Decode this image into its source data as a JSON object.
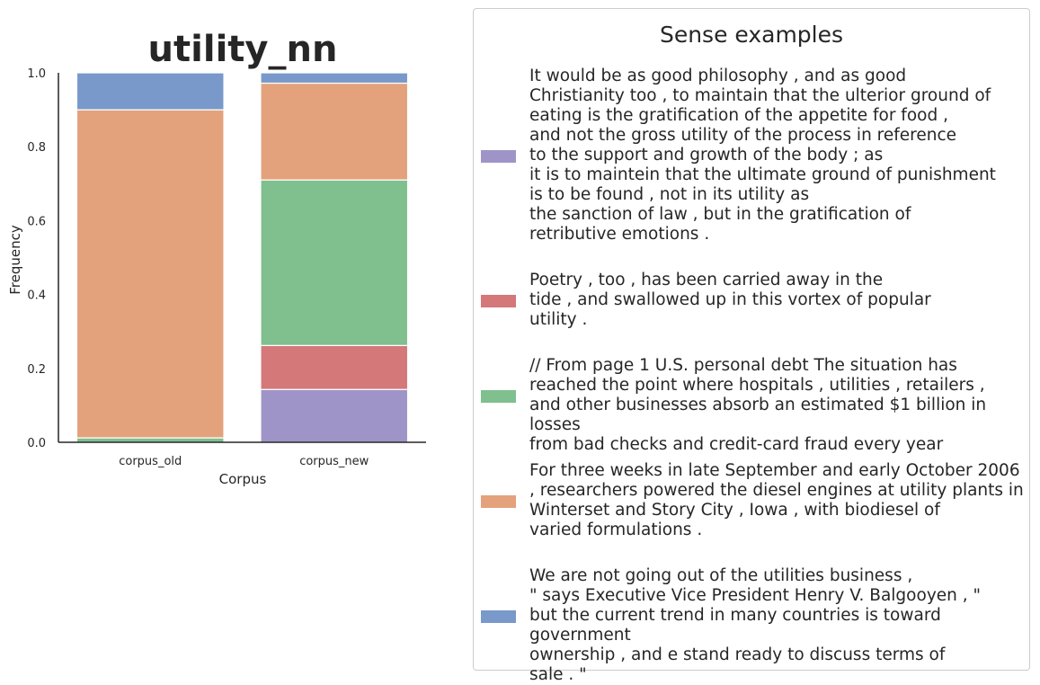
{
  "chart_data": {
    "type": "bar",
    "stacked": true,
    "title": "utility_nn",
    "xlabel": "Corpus",
    "ylabel": "Frequency",
    "ylim": [
      0,
      1.0
    ],
    "yticks": [
      "0.0",
      "0.2",
      "0.4",
      "0.6",
      "0.8",
      "1.0"
    ],
    "categories": [
      "corpus_old",
      "corpus_new"
    ],
    "series": [
      {
        "color": "#9f94c8",
        "values": [
          0.0,
          0.143
        ]
      },
      {
        "color": "#d4787a",
        "values": [
          0.0,
          0.119
        ]
      },
      {
        "color": "#80bf8e",
        "values": [
          0.012,
          0.448
        ]
      },
      {
        "color": "#e3a27c",
        "values": [
          0.888,
          0.262
        ]
      },
      {
        "color": "#7899c9",
        "values": [
          0.1,
          0.028
        ]
      }
    ],
    "legend": {
      "title": "Sense examples",
      "placement": "right",
      "entries": [
        {
          "color": "#9f94c8",
          "text": "It would be as good philosophy , and as good\nChristianity too , to maintain that the ulterior ground of\neating is the gratification of the appetite for food ,\nand not the gross utility of the process in reference\nto the support and growth of the body ; as\nit is to maintein that the ultimate ground of punishment\nis to be found , not in its utility as\nthe sanction of law , but in the gratification of\nretributive emotions ."
        },
        {
          "color": "#d4787a",
          "text": "Poetry , too , has been carried away in the\ntide , and swallowed up in this vortex of popular\nutility ."
        },
        {
          "color": "#80bf8e",
          "text": "// From page 1 U.S. personal debt The situation has\nreached the point where hospitals , utilities , retailers ,\nand other businesses absorb an estimated $1 billion in losses\nfrom bad checks and credit-card fraud every year"
        },
        {
          "color": "#e3a27c",
          "text": "For three weeks in late September and early October 2006\n, researchers powered the diesel engines at utility plants in\nWinterset and Story City , Iowa , with biodiesel of\nvaried formulations ."
        },
        {
          "color": "#7899c9",
          "text": "We are not going out of the utilities business ,\n\" says Executive Vice President Henry V. Balgooyen , \"\nbut the current trend in many countries is toward government\nownership , and e stand ready to discuss terms of\nsale . \""
        }
      ]
    }
  }
}
